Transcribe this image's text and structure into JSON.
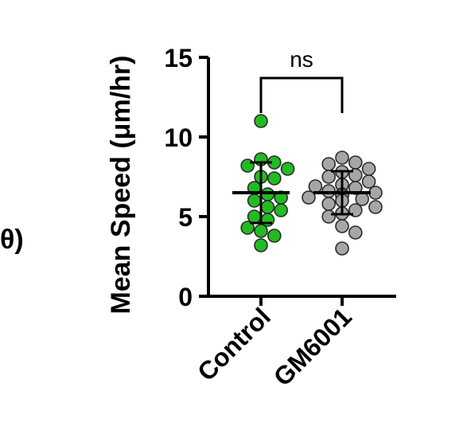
{
  "fragment_text": "θ)",
  "chart_data": {
    "type": "scatter",
    "title": "",
    "xlabel": "",
    "ylabel": "Mean Speed (μm/hr)",
    "ylim": [
      0,
      15
    ],
    "yticks": [
      0,
      5,
      10,
      15
    ],
    "categories": [
      "Control",
      "GM6001"
    ],
    "colors": {
      "Control": "#22bb22",
      "GM6001": "#a6a6a6"
    },
    "series": [
      {
        "name": "Control",
        "values": [
          11.0,
          8.6,
          8.4,
          8.2,
          8.0,
          7.5,
          7.4,
          6.8,
          6.4,
          6.2,
          6.0,
          5.6,
          5.4,
          5.0,
          4.8,
          4.3,
          4.1,
          3.8,
          3.2
        ],
        "mean": 6.5,
        "sd": 1.9
      },
      {
        "name": "GM6001",
        "values": [
          8.7,
          8.4,
          8.3,
          8.0,
          7.8,
          7.6,
          7.5,
          7.2,
          7.0,
          6.9,
          6.8,
          6.6,
          6.5,
          6.4,
          6.3,
          6.2,
          6.1,
          6.0,
          5.8,
          5.6,
          5.4,
          5.2,
          5.0,
          4.4,
          4.0,
          3.0
        ],
        "mean": 6.5,
        "sd": 1.35
      }
    ],
    "annotations": [
      {
        "type": "bracket",
        "between": [
          "Control",
          "GM6001"
        ],
        "text": "ns"
      }
    ]
  }
}
